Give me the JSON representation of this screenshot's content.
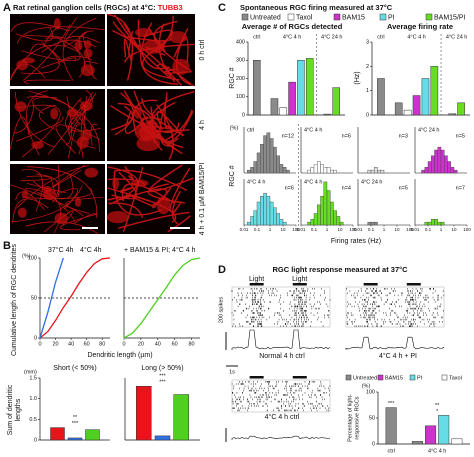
{
  "panel_a": {
    "label": "A",
    "title": "Rat retinal ganglion cells (RGCs) at 4°C: ",
    "stain": "TUBB3",
    "stain_color": "#e8141c",
    "rows": [
      "0 h ctrl",
      "4 h",
      "4 h + 0.1 µM BAM15/PI"
    ]
  },
  "panel_b": {
    "label": "B",
    "cumulative": {
      "type": "line",
      "y_label": "Cumulative length of RGC dendrites",
      "y_unit": "(%)",
      "x_label": "Dendritic length (µm)",
      "xlim": [
        0,
        90
      ],
      "xticks": [
        0,
        20,
        40,
        60,
        80
      ],
      "ylim": [
        0,
        100
      ],
      "yticks": [
        0,
        50,
        100
      ],
      "reference_y": 50,
      "x": [
        0,
        10,
        20,
        30,
        40,
        50,
        60,
        70,
        80,
        90
      ],
      "series": [
        {
          "name": "37°C 4h",
          "color": "#e8141c",
          "values": [
            0,
            8,
            22,
            38,
            52,
            68,
            82,
            93,
            99,
            100
          ]
        },
        {
          "name": "4°C 4h",
          "color": "#2f6fe0",
          "values": [
            0,
            32,
            70,
            100,
            null,
            null,
            null,
            null,
            null,
            null
          ]
        },
        {
          "name": "+ BAM15 & PI; 4°C 4 h",
          "color": "#4fcf1f",
          "values": [
            0,
            6,
            18,
            33,
            48,
            63,
            79,
            91,
            98,
            100
          ]
        }
      ]
    },
    "sums": {
      "type": "bar",
      "y_label": "Sum of dendritic",
      "y_label2": "lengths",
      "y_unit": "(mm)",
      "ylim": [
        0,
        1.5
      ],
      "yticks": [
        0,
        0.5,
        {
          "value": 1,
          "label": "1.0"
        },
        1.5
      ],
      "colors": [
        "#e8141c",
        "#2f6fe0",
        "#4fcf1f"
      ],
      "groups": [
        {
          "name": "Short (< 50%)",
          "values": [
            0.3,
            0.05,
            0.25
          ],
          "marks": [
            "***",
            "**"
          ]
        },
        {
          "name": "Long (> 50%)",
          "values": [
            1.3,
            0.1,
            1.1
          ],
          "marks": [
            "***",
            "***"
          ]
        }
      ]
    }
  },
  "panel_c": {
    "label": "C",
    "title": "Spontaneous RGC firing measured at 37°C",
    "legend": [
      {
        "name": "Untreated",
        "color": "#8a8a8a"
      },
      {
        "name": "Taxol",
        "color": "#ffffff"
      },
      {
        "name": "BAM15",
        "color": "#cc33cc"
      },
      {
        "name": "PI",
        "color": "#66dde6"
      },
      {
        "name": "BAM15/PI",
        "color": "#66dd22"
      }
    ],
    "count": {
      "type": "bar",
      "title": "Average # of RGCs detected",
      "y_label": "RGC #",
      "ylim": [
        0,
        400
      ],
      "yticks": [
        0,
        100,
        200,
        300,
        400
      ],
      "groups": [
        {
          "name": "ctrl",
          "values": [
            300,
            null,
            null,
            null,
            null
          ]
        },
        {
          "name": "4°C 4 h",
          "values": [
            90,
            40,
            180,
            300,
            310
          ]
        },
        {
          "name": "4°C 24 h",
          "values": [
            5,
            null,
            null,
            null,
            150
          ]
        }
      ]
    },
    "rate": {
      "type": "bar",
      "title": "Average firing rate",
      "y_label": "(Hz)",
      "ylim": [
        0,
        3
      ],
      "yticks": [
        0,
        1,
        2,
        3
      ],
      "groups": [
        {
          "name": "ctrl",
          "values": [
            1.5,
            null,
            null,
            null,
            null
          ]
        },
        {
          "name": "4°C 4 h",
          "values": [
            0.5,
            0.2,
            0.8,
            1.5,
            2
          ]
        },
        {
          "name": "4°C 24 h",
          "values": [
            0.05,
            null,
            null,
            null,
            0.5
          ]
        }
      ]
    },
    "histograms": {
      "type": "histogram",
      "x_label": "Firing rates (Hz)",
      "y_label": "RGC #",
      "y_unit": "(%)",
      "log_x": true,
      "xlim": [
        0.01,
        100
      ],
      "xticks": [
        0.01,
        0.1,
        1,
        10,
        100
      ],
      "ylim": [
        0,
        16
      ],
      "bins": [
        0.01,
        0.0178,
        0.0316,
        0.0562,
        0.1,
        0.178,
        0.316,
        0.562,
        1,
        1.78,
        3.16,
        5.62,
        10,
        17.8,
        31.6,
        56.2,
        100
      ],
      "panels": [
        {
          "label": "ctrl",
          "n": "n=12",
          "color": "#8a8a8a",
          "values": [
            0,
            1,
            2,
            4,
            7,
            10,
            13,
            14,
            12,
            9,
            6,
            3,
            2,
            1,
            0,
            0
          ]
        },
        {
          "label": "4°C 4 h",
          "n": "n=6",
          "color": "#ffffff",
          "values": [
            0,
            0,
            1,
            2,
            3,
            4,
            3,
            2,
            2,
            1,
            1,
            0,
            0,
            0,
            0,
            0
          ]
        },
        {
          "n": "n=3",
          "color": "#dddddd",
          "values": [
            0,
            0,
            0,
            1,
            1,
            2,
            1,
            1,
            0,
            0,
            0,
            0,
            0,
            0,
            0,
            0
          ]
        },
        {
          "label": "4°C 24 h",
          "n": "n=5",
          "color": "#cc33cc",
          "values": [
            0,
            0,
            1,
            2,
            4,
            6,
            8,
            9,
            8,
            6,
            4,
            2,
            1,
            0,
            0,
            0
          ]
        },
        {
          "label": "4°C 4 h",
          "n": "n=6",
          "color": "#66dde6",
          "values": [
            0,
            1,
            3,
            5,
            8,
            10,
            11,
            10,
            8,
            6,
            4,
            2,
            1,
            0,
            0,
            0
          ]
        },
        {
          "label": "4°C 4 h",
          "n": "n=4",
          "color": "#66dd22",
          "values": [
            0,
            0,
            1,
            2,
            4,
            7,
            10,
            15,
            12,
            8,
            5,
            3,
            1,
            0,
            0,
            0
          ]
        },
        {
          "label": "4°C 24 h",
          "n": "n=5",
          "color": "#8a8a8a",
          "values": [
            0,
            0,
            0,
            1,
            1,
            1,
            0,
            0,
            0,
            0,
            0,
            0,
            0,
            0,
            0,
            0
          ]
        },
        {
          "n": "n=7",
          "color": "#66dd22",
          "values": [
            0,
            0,
            0,
            1,
            1,
            2,
            2,
            1,
            1,
            0,
            0,
            0,
            0,
            0,
            0,
            0
          ]
        }
      ]
    }
  },
  "panel_d": {
    "label": "D",
    "title": "RGC light response measured at 37°C",
    "light": "Light",
    "scale_y": "200 spikes",
    "scale_x": "1s",
    "captions": [
      "Normal 4 h ctrl",
      "4°C 4 h + PI",
      "4°C 4 h ctrl"
    ],
    "percent": {
      "type": "bar",
      "y_label": "Percentage of light-",
      "y_label2": "responsive RGCs",
      "y_unit": "(%)",
      "ylim": [
        0,
        100
      ],
      "yticks": [
        0,
        50,
        100
      ],
      "legend": [
        {
          "name": "Untreated",
          "color": "#8a8a8a"
        },
        {
          "name": "BAM15",
          "color": "#cc33cc"
        },
        {
          "name": "PI",
          "color": "#66dde6"
        },
        {
          "name": "Taxol",
          "color": "#ffffff"
        }
      ],
      "groups": [
        {
          "name": "ctrl",
          "values": [
            70,
            null,
            null,
            null
          ],
          "marks": [
            "***"
          ]
        },
        {
          "name": "4°C 4 h",
          "values": [
            5,
            35,
            55,
            10
          ],
          "marks": [
            "*",
            "**"
          ]
        }
      ]
    }
  }
}
